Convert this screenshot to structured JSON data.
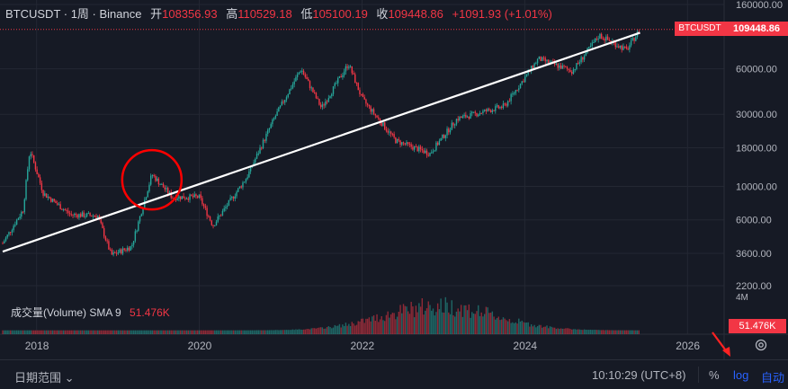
{
  "header": {
    "symbol": "BTCUSDT · 1周 · Binance",
    "open_label": "开",
    "open": "108356.93",
    "high_label": "高",
    "high": "110529.18",
    "low_label": "低",
    "low": "105100.19",
    "close_label": "收",
    "close": "109448.86",
    "change": "+1091.93 (+1.01%)"
  },
  "price_axis": {
    "ticks": [
      "160000.00",
      "60000.00",
      "30000.00",
      "18000.00",
      "10000.00",
      "6000.00",
      "3600.00",
      "2200.00"
    ],
    "last_price": "109448.86",
    "symbol_tag": "BTCUSDT",
    "volume_max_label": "4M",
    "volume_tag": "51.476K"
  },
  "time_axis": {
    "labels": [
      "2018",
      "2020",
      "2022",
      "2024",
      "2026"
    ]
  },
  "volume_legend": {
    "label": "成交量(Volume)  SMA 9",
    "value": "51.476K"
  },
  "footer": {
    "range_label": "日期范围 ⌄",
    "time": "10:10:29 (UTC+8)",
    "percent": "%",
    "log": "log",
    "auto": "自动"
  },
  "colors": {
    "up": "#26a69a",
    "down": "#f23645",
    "bg": "#161a25",
    "grid": "#232733",
    "accent": "#2962ff",
    "annotation": "#ff0000"
  },
  "chart_data": {
    "type": "candlestick",
    "symbol": "BTCUSDT",
    "interval": "1周",
    "scale": "log",
    "ylim": [
      2200,
      160000
    ],
    "xlim": [
      "2017-08",
      "2026-06"
    ],
    "points": [
      [
        "2017-08",
        4200
      ],
      [
        "2017-11",
        7000
      ],
      [
        "2017-12",
        17500
      ],
      [
        "2018-02",
        9000
      ],
      [
        "2018-06",
        6500
      ],
      [
        "2018-10",
        6400
      ],
      [
        "2018-12",
        3500
      ],
      [
        "2019-03",
        4000
      ],
      [
        "2019-06",
        12000
      ],
      [
        "2019-09",
        8500
      ],
      [
        "2020-01",
        8500
      ],
      [
        "2020-03",
        5500
      ],
      [
        "2020-08",
        11500
      ],
      [
        "2020-12",
        28000
      ],
      [
        "2021-04",
        60000
      ],
      [
        "2021-07",
        33000
      ],
      [
        "2021-11",
        65000
      ],
      [
        "2022-01",
        38000
      ],
      [
        "2022-06",
        20000
      ],
      [
        "2022-11",
        16500
      ],
      [
        "2023-03",
        28000
      ],
      [
        "2023-10",
        34000
      ],
      [
        "2024-03",
        70000
      ],
      [
        "2024-08",
        58000
      ],
      [
        "2024-12",
        100000
      ],
      [
        "2025-04",
        80000
      ],
      [
        "2025-06",
        109448.86
      ]
    ],
    "trendline": [
      [
        "2017-08",
        3700
      ],
      [
        "2025-06",
        104000
      ]
    ],
    "volume_series": "weekly bars, peak near 2022-12",
    "annotation": {
      "shape": "circle",
      "center": "2019-06"
    }
  }
}
